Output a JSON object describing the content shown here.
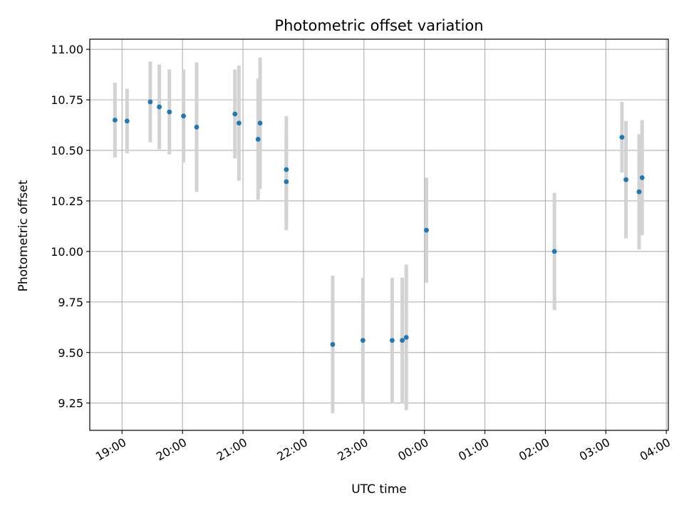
{
  "chart_data": {
    "type": "scatter",
    "title": "Photometric offset variation",
    "xlabel": "UTC time",
    "ylabel": "Photometric offset",
    "x_axis_kind": "time",
    "x_tick_labels": [
      "19:00",
      "20:00",
      "21:00",
      "22:00",
      "23:00",
      "00:00",
      "01:00",
      "02:00",
      "03:00",
      "04:00"
    ],
    "y_ticks": [
      9.25,
      9.5,
      9.75,
      10.0,
      10.25,
      10.5,
      10.75,
      11.0
    ],
    "y_tick_labels": [
      "9.25",
      "9.50",
      "9.75",
      "10.00",
      "10.25",
      "10.50",
      "10.75",
      "11.00"
    ],
    "xlim": [
      "18:28",
      "04:02"
    ],
    "ylim": [
      9.115,
      11.05
    ],
    "grid": true,
    "series": [
      {
        "marker_color": "#1f77b4",
        "errorbar_color": "#d3d3d3",
        "points": [
          {
            "x": "18:53",
            "y": 10.65,
            "yerr": 0.185
          },
          {
            "x": "19:05",
            "y": 10.645,
            "yerr": 0.16
          },
          {
            "x": "19:28",
            "y": 10.74,
            "yerr": 0.2
          },
          {
            "x": "19:37",
            "y": 10.715,
            "yerr": 0.21
          },
          {
            "x": "19:47",
            "y": 10.69,
            "yerr": 0.21
          },
          {
            "x": "20:01",
            "y": 10.67,
            "yerr": 0.23
          },
          {
            "x": "20:14",
            "y": 10.615,
            "yerr": 0.32
          },
          {
            "x": "20:52",
            "y": 10.68,
            "yerr": 0.22
          },
          {
            "x": "20:56",
            "y": 10.635,
            "yerr": 0.285
          },
          {
            "x": "21:15",
            "y": 10.555,
            "yerr": 0.3
          },
          {
            "x": "21:17",
            "y": 10.635,
            "yerr": 0.325
          },
          {
            "x": "21:43",
            "y": 10.405,
            "yerr": 0.265
          },
          {
            "x": "21:43",
            "y": 10.345,
            "yerr": 0.24
          },
          {
            "x": "22:29",
            "y": 9.54,
            "yerr": 0.34
          },
          {
            "x": "22:59",
            "y": 9.56,
            "yerr": 0.31
          },
          {
            "x": "23:28",
            "y": 9.56,
            "yerr": 0.31
          },
          {
            "x": "23:38",
            "y": 9.56,
            "yerr": 0.31
          },
          {
            "x": "23:42",
            "y": 9.575,
            "yerr": 0.36
          },
          {
            "x": "00:02",
            "y": 10.105,
            "yerr": 0.26
          },
          {
            "x": "02:09",
            "y": 10.0,
            "yerr": 0.29
          },
          {
            "x": "03:16",
            "y": 10.565,
            "yerr": 0.175
          },
          {
            "x": "03:20",
            "y": 10.355,
            "yerr": 0.29
          },
          {
            "x": "03:33",
            "y": 10.295,
            "yerr": 0.285
          },
          {
            "x": "03:36",
            "y": 10.365,
            "yerr": 0.285
          }
        ]
      }
    ]
  }
}
